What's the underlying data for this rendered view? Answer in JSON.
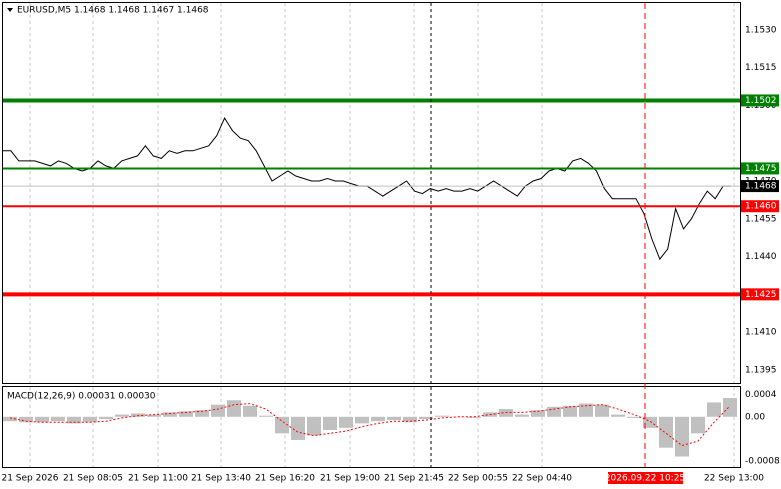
{
  "chart_data": [
    {
      "type": "line",
      "title": "EURUSD,M5  1.1468 1.1468 1.1467 1.1468",
      "color": "#000000",
      "values": [
        1.1482,
        1.1482,
        1.1478,
        1.1478,
        1.1478,
        1.1477,
        1.1476,
        1.1478,
        1.1477,
        1.1475,
        1.1474,
        1.1475,
        1.1478,
        1.1476,
        1.1475,
        1.1478,
        1.1479,
        1.148,
        1.1484,
        1.148,
        1.1479,
        1.1482,
        1.1481,
        1.1482,
        1.1482,
        1.1483,
        1.1484,
        1.1488,
        1.1495,
        1.149,
        1.1487,
        1.1486,
        1.1482,
        1.1476,
        1.147,
        1.1472,
        1.1474,
        1.1472,
        1.1471,
        1.147,
        1.147,
        1.1471,
        1.147,
        1.147,
        1.1469,
        1.1468,
        1.1468,
        1.1466,
        1.1464,
        1.1466,
        1.1468,
        1.147,
        1.1466,
        1.1465,
        1.1467,
        1.1466,
        1.1467,
        1.1466,
        1.1466,
        1.1467,
        1.1466,
        1.1468,
        1.147,
        1.1468,
        1.1466,
        1.1464,
        1.1468,
        1.147,
        1.1471,
        1.1474,
        1.1475,
        1.1474,
        1.1478,
        1.1479,
        1.1477,
        1.1474,
        1.1467,
        1.1463,
        1.1463,
        1.1463,
        1.1463,
        1.1457,
        1.1447,
        1.1439,
        1.1443,
        1.1459,
        1.1451,
        1.1455,
        1.1461,
        1.1466,
        1.1463,
        1.1468,
        1.1468
      ],
      "ylim": [
        1.13898,
        1.15407
      ],
      "yticks": [
        {
          "value": 1.153,
          "label": "1.1530"
        },
        1.1515,
        {
          "value": 1.15,
          "label": "1.1500"
        },
        {
          "value": 1.147,
          "label": "1.1470"
        },
        1.1455,
        {
          "value": 1.144,
          "label": "1.1440"
        },
        {
          "value": 1.141,
          "label": "1.1410"
        },
        1.1395
      ],
      "grid": true,
      "levels": [
        {
          "value": 1.1502,
          "color": "#008000",
          "width": 4
        },
        {
          "value": 1.1475,
          "color": "#008000",
          "width": 2
        },
        {
          "value": 1.146,
          "label": "1.1460",
          "color": "#ff0000",
          "width": 2
        },
        {
          "value": 1.1425,
          "color": "#ff0000",
          "width": 4
        }
      ],
      "last_price": 1.1468,
      "x_labels": [
        "21 Sep 2026",
        "21 Sep 08:05",
        "21 Sep 11:00",
        "21 Sep 13:40",
        "21 Sep 16:20",
        "21 Sep 19:00",
        "21 Sep 21:45",
        "22 Sep 00:55",
        "22 Sep 04:40",
        "22 Sep 13:00"
      ],
      "cursor_time": "2026.09.22 10:25"
    },
    {
      "type": "bar",
      "title": "MACD(12,26,9) 0.00031 0.00030",
      "color": "#c0c0c0",
      "values": [
        -8e-05,
        -0.0001,
        -0.0001,
        -8e-05,
        -0.00012,
        -0.0001,
        -4e-05,
        4e-05,
        6e-05,
        4e-05,
        8e-05,
        0.0001,
        0.00012,
        0.00022,
        0.0003,
        0.0002,
        2e-05,
        -0.0003,
        -0.00042,
        -0.00034,
        -0.00024,
        -0.0002,
        -0.00012,
        -8e-05,
        -6e-05,
        -0.0001,
        -4e-05,
        2e-05,
        0,
        -2e-05,
        8e-05,
        0.00014,
        4e-05,
        0.00012,
        0.00018,
        0.0002,
        0.00024,
        0.00022,
        4e-05,
        -2e-05,
        -0.0002,
        -0.00056,
        -0.00072,
        -0.0003,
        0.00026,
        0.00034
      ],
      "signal": {
        "color": "#ff0000",
        "values": [
          -2e-05,
          -8e-05,
          -0.0001,
          -0.0001,
          -0.0001,
          -0.0001,
          -8e-05,
          -2e-05,
          2e-05,
          4e-05,
          6e-05,
          8e-05,
          0.0001,
          0.00014,
          0.00022,
          0.00024,
          0.00014,
          -8e-05,
          -0.00028,
          -0.00034,
          -0.0003,
          -0.00026,
          -0.00018,
          -0.00012,
          -8e-05,
          -8e-05,
          -6e-05,
          -2e-05,
          0,
          0,
          4e-05,
          8e-05,
          8e-05,
          0.0001,
          0.00014,
          0.00018,
          0.0002,
          0.00022,
          0.00014,
          4e-05,
          -8e-05,
          -0.0003,
          -0.00052,
          -0.00044,
          -0.0001,
          0.0002
        ]
      },
      "ylim": [
        -0.00091,
        0.00054
      ],
      "yticks": [
        0.0004,
        {
          "value": 0,
          "label": "0.00"
        },
        -0.0008
      ]
    }
  ]
}
